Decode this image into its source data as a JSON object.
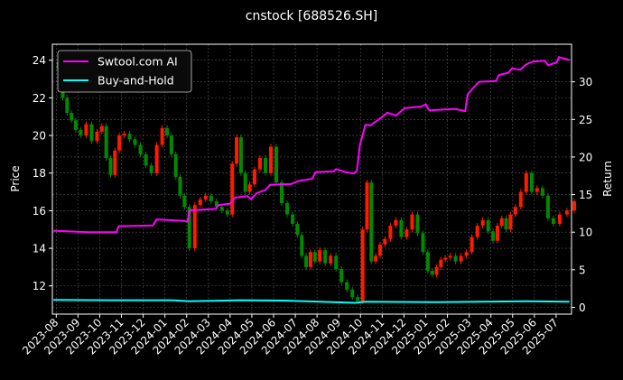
{
  "chart_data": {
    "type": "line",
    "title": "cnstock [688526.SH]",
    "ylabel_left": "Price",
    "ylabel_right": "Return",
    "ylim_left": [
      10.5,
      24.85
    ],
    "ylim_right": [
      -0.9,
      35
    ],
    "yticks_left": [
      12,
      14,
      16,
      18,
      20,
      22,
      24
    ],
    "yticks_right": [
      0,
      5,
      10,
      15,
      20,
      25,
      30
    ],
    "xticks": [
      "2023-08",
      "2023-09",
      "2023-10",
      "2023-11",
      "2023-12",
      "2024-01",
      "2024-02",
      "2024-03",
      "2024-04",
      "2024-05",
      "2024-06",
      "2024-07",
      "2024-08",
      "2024-09",
      "2024-10",
      "2024-11",
      "2024-12",
      "2025-01",
      "2025-02",
      "2025-03",
      "2025-04",
      "2025-05",
      "2025-06",
      "2025-07"
    ],
    "grid": true,
    "legend_placement": "top-left",
    "colors": {
      "up": "#ff1a00",
      "down": "#008a00",
      "strategy": "#ff00ff",
      "buy_hold": "#00ffff",
      "background": "#000000",
      "grid": "#555555"
    },
    "price_weekly_close": [
      {
        "month": "2023-08",
        "closes": [
          23.5,
          22.0,
          21.2,
          20.8,
          20.3
        ]
      },
      {
        "month": "2023-09",
        "closes": [
          20.0,
          20.6,
          19.7,
          20.2
        ]
      },
      {
        "month": "2023-10",
        "closes": [
          20.5,
          18.8,
          17.9,
          19.2,
          20.0
        ]
      },
      {
        "month": "2023-11",
        "closes": [
          20.1,
          19.8,
          19.5,
          19.0
        ]
      },
      {
        "month": "2023-12",
        "closes": [
          18.4,
          18.0,
          19.5,
          20.4
        ]
      },
      {
        "month": "2024-01",
        "closes": [
          20.0,
          19.0,
          17.8,
          16.8,
          16.2
        ]
      },
      {
        "month": "2024-02",
        "closes": [
          14.0,
          16.3,
          16.6,
          16.8
        ]
      },
      {
        "month": "2024-03",
        "closes": [
          16.5,
          16.2,
          16.0,
          15.8
        ]
      },
      {
        "month": "2024-04",
        "closes": [
          18.5,
          19.9,
          18.0,
          17.0,
          17.4
        ]
      },
      {
        "month": "2024-05",
        "closes": [
          18.2,
          18.8,
          18.0,
          19.4
        ]
      },
      {
        "month": "2024-06",
        "closes": [
          17.5,
          16.4,
          15.8,
          15.3
        ]
      },
      {
        "month": "2024-07",
        "closes": [
          14.7,
          13.6,
          13.0,
          13.8,
          13.3
        ]
      },
      {
        "month": "2024-08",
        "closes": [
          13.9,
          13.2,
          13.6,
          12.9
        ]
      },
      {
        "month": "2024-09",
        "closes": [
          12.2,
          11.8,
          11.4,
          11.2
        ]
      },
      {
        "month": "2024-10",
        "closes": [
          15.0,
          17.5,
          13.3,
          13.6,
          14.2
        ]
      },
      {
        "month": "2024-11",
        "closes": [
          14.5,
          15.2,
          15.5,
          14.6
        ]
      },
      {
        "month": "2024-12",
        "closes": [
          15.0,
          15.8,
          14.8,
          13.8
        ]
      },
      {
        "month": "2025-01",
        "closes": [
          12.8,
          12.6,
          13.0,
          13.4,
          13.5
        ]
      },
      {
        "month": "2025-02",
        "closes": [
          13.6,
          13.3,
          13.6,
          13.8
        ]
      },
      {
        "month": "2025-03",
        "closes": [
          14.6,
          15.2,
          15.5,
          14.9
        ]
      },
      {
        "month": "2025-04",
        "closes": [
          14.4,
          15.2,
          15.6,
          15.0,
          15.8
        ]
      },
      {
        "month": "2025-05",
        "closes": [
          16.2,
          17.0,
          18.0,
          17.0
        ]
      },
      {
        "month": "2025-06",
        "closes": [
          17.2,
          16.8,
          15.6,
          15.3
        ]
      },
      {
        "month": "2025-07",
        "closes": [
          15.8,
          16.0,
          16.5
        ]
      }
    ],
    "series": [
      {
        "name": "Swtool.com AI",
        "axis": "right",
        "points": [
          [
            "2023-07-28",
            10.2
          ],
          [
            "2023-09-15",
            10.0
          ],
          [
            "2023-10-25",
            10.0
          ],
          [
            "2023-10-28",
            10.8
          ],
          [
            "2023-12-15",
            10.9
          ],
          [
            "2023-12-20",
            11.7
          ],
          [
            "2024-01-29",
            11.5
          ],
          [
            "2024-02-02",
            11.4
          ],
          [
            "2024-02-05",
            12.9
          ],
          [
            "2024-03-12",
            13.1
          ],
          [
            "2024-03-15",
            13.6
          ],
          [
            "2024-04-01",
            13.8
          ],
          [
            "2024-04-08",
            14.6
          ],
          [
            "2024-04-25",
            14.8
          ],
          [
            "2024-04-30",
            14.4
          ],
          [
            "2024-05-08",
            15.2
          ],
          [
            "2024-05-20",
            15.6
          ],
          [
            "2024-05-27",
            16.3
          ],
          [
            "2024-06-25",
            16.4
          ],
          [
            "2024-07-05",
            16.8
          ],
          [
            "2024-07-25",
            17.1
          ],
          [
            "2024-07-30",
            18.0
          ],
          [
            "2024-08-25",
            18.1
          ],
          [
            "2024-08-28",
            18.4
          ],
          [
            "2024-09-10",
            18.0
          ],
          [
            "2024-09-22",
            17.8
          ],
          [
            "2024-09-26",
            18.2
          ],
          [
            "2024-09-30",
            21.5
          ],
          [
            "2024-10-08",
            24.3
          ],
          [
            "2024-10-15",
            24.2
          ],
          [
            "2024-10-30",
            25.2
          ],
          [
            "2024-11-08",
            25.9
          ],
          [
            "2024-11-20",
            25.5
          ],
          [
            "2024-12-02",
            26.5
          ],
          [
            "2024-12-25",
            26.7
          ],
          [
            "2025-01-01",
            27.0
          ],
          [
            "2025-01-06",
            26.2
          ],
          [
            "2025-02-10",
            26.4
          ],
          [
            "2025-02-24",
            26.1
          ],
          [
            "2025-02-27",
            28.3
          ],
          [
            "2025-03-05",
            29.0
          ],
          [
            "2025-03-15",
            30.0
          ],
          [
            "2025-04-08",
            30.1
          ],
          [
            "2025-04-12",
            30.9
          ],
          [
            "2025-04-25",
            31.2
          ],
          [
            "2025-04-30",
            31.8
          ],
          [
            "2025-05-12",
            31.6
          ],
          [
            "2025-05-20",
            32.3
          ],
          [
            "2025-05-30",
            32.7
          ],
          [
            "2025-06-15",
            32.8
          ],
          [
            "2025-06-20",
            32.2
          ],
          [
            "2025-07-02",
            32.6
          ],
          [
            "2025-07-05",
            33.3
          ],
          [
            "2025-07-20",
            32.9
          ]
        ]
      },
      {
        "name": "Buy-and-Hold",
        "axis": "right",
        "points": [
          [
            "2023-07-28",
            1.0
          ],
          [
            "2023-10-15",
            0.95
          ],
          [
            "2024-01-10",
            0.95
          ],
          [
            "2024-02-05",
            0.8
          ],
          [
            "2024-04-15",
            0.95
          ],
          [
            "2024-06-15",
            0.9
          ],
          [
            "2024-09-24",
            0.6
          ],
          [
            "2024-10-08",
            0.75
          ],
          [
            "2025-01-15",
            0.7
          ],
          [
            "2025-05-20",
            0.8
          ],
          [
            "2025-07-20",
            0.75
          ]
        ]
      }
    ]
  }
}
